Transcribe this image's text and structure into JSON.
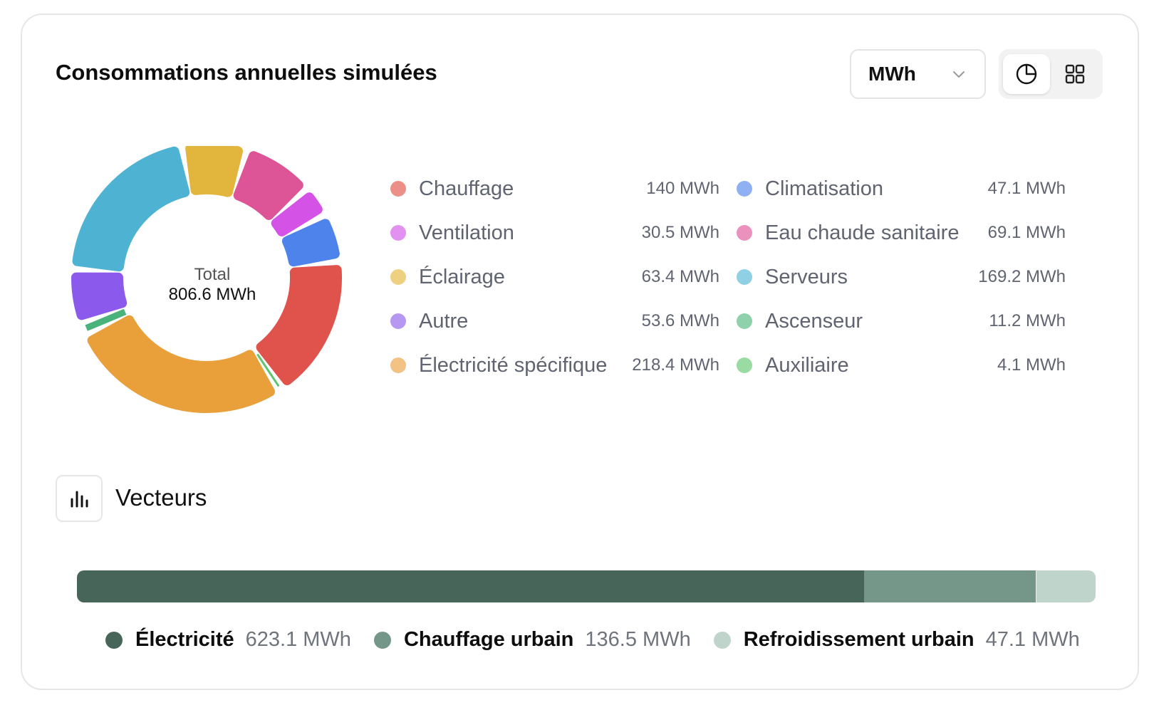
{
  "card": {
    "title": "Consommations annuelles simulées",
    "unit_select": {
      "value": "MWh",
      "icon": "chevron-down-icon"
    },
    "view_toggle": {
      "active": "pie-chart-icon",
      "other": "grid-icon"
    }
  },
  "donut": {
    "total_label": "Total",
    "total_value": "806.6 MWh"
  },
  "chart_data": [
    {
      "type": "pie",
      "variant": "donut",
      "unit": "MWh",
      "series": [
        {
          "name": "Chauffage",
          "value": 140,
          "label": "140 MWh",
          "color": "#e0524c",
          "legend_color": "#ec8f89"
        },
        {
          "name": "Climatisation",
          "value": 47.1,
          "label": "47.1 MWh",
          "color": "#4f83ec",
          "legend_color": "#8fb0f2"
        },
        {
          "name": "Ventilation",
          "value": 30.5,
          "label": "30.5 MWh",
          "color": "#d452e6",
          "legend_color": "#e391f0"
        },
        {
          "name": "Eau chaude sanitaire",
          "value": 69.1,
          "label": "69.1 MWh",
          "color": "#dd5597",
          "legend_color": "#ea91bd"
        },
        {
          "name": "Éclairage",
          "value": 63.4,
          "label": "63.4 MWh",
          "color": "#e2b63c",
          "legend_color": "#eed180"
        },
        {
          "name": "Serveurs",
          "value": 169.2,
          "label": "169.2 MWh",
          "color": "#4eb2d2",
          "legend_color": "#8fd0e5"
        },
        {
          "name": "Autre",
          "value": 53.6,
          "label": "53.6 MWh",
          "color": "#8b59ec",
          "legend_color": "#b698f3"
        },
        {
          "name": "Ascenseur",
          "value": 11.2,
          "label": "11.2 MWh",
          "color": "#4ab37c",
          "legend_color": "#8fd1ab"
        },
        {
          "name": "Électricité spécifique",
          "value": 218.4,
          "label": "218.4 MWh",
          "color": "#e9a03a",
          "legend_color": "#f2c184"
        },
        {
          "name": "Auxiliaire",
          "value": 4.1,
          "label": "4.1 MWh",
          "color": "#5ec56f",
          "legend_color": "#99dba3"
        }
      ],
      "slice_order": [
        "Chauffage",
        "Auxiliaire",
        "Électricité spécifique",
        "Ascenseur",
        "Autre",
        "Serveurs",
        "Éclairage",
        "Eau chaude sanitaire",
        "Ventilation",
        "Climatisation"
      ]
    },
    {
      "type": "bar",
      "variant": "stacked-horizontal",
      "title": "Vecteurs",
      "unit": "MWh",
      "series": [
        {
          "name": "Électricité",
          "value": 623.1,
          "label": "623.1 MWh",
          "color": "#476558"
        },
        {
          "name": "Chauffage urbain",
          "value": 136.5,
          "label": "136.5 MWh",
          "color": "#74978a"
        },
        {
          "name": "Refroidissement urbain",
          "value": 47.1,
          "label": "47.1 MWh",
          "color": "#bfd5cb"
        }
      ]
    }
  ],
  "vecteurs": {
    "title": "Vecteurs",
    "icon": "bar-chart-icon"
  }
}
